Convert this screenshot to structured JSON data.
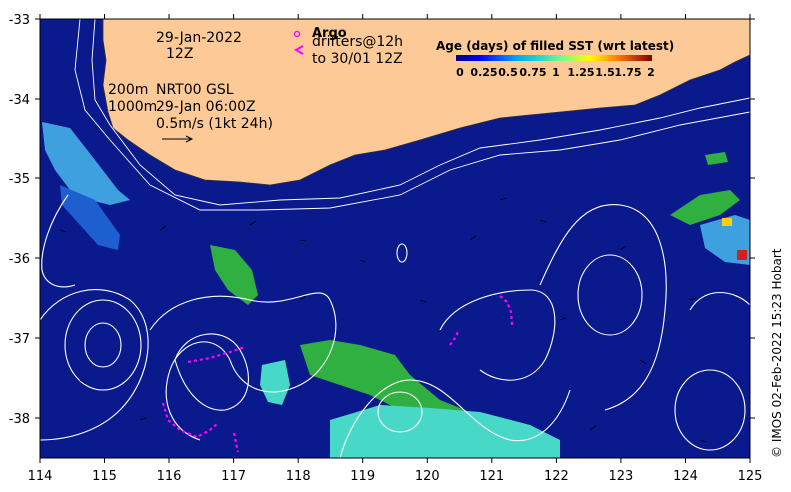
{
  "map": {
    "date_line1": "29-Jan-2022",
    "date_line2": "12Z",
    "argo_label": "Argo",
    "drifters_line1": "drifters@12h",
    "drifters_line2": "to 30/01 12Z",
    "isobath_200": "200m",
    "isobath_1000": "1000m",
    "product": "NRT00 GSL",
    "product_time": "29-Jan 06:00Z",
    "scale_label": "0.5m/s (1kt 24h)",
    "credit": "© IMOS 02-Feb-2022 15:23 Hobart",
    "x_ticks": [
      "114",
      "115",
      "116",
      "117",
      "118",
      "119",
      "120",
      "121",
      "122",
      "123",
      "124",
      "125"
    ],
    "y_ticks": [
      "-33",
      "-34",
      "-35",
      "-36",
      "-37",
      "-38"
    ]
  },
  "legend": {
    "title": "Age (days) of filled SST (wrt latest)",
    "ticks": [
      "0",
      "0.25",
      "0.5",
      "0.75",
      "1",
      "1.25",
      "1.5",
      "1.75",
      "2"
    ]
  },
  "colors": {
    "ocean": "#0a1a8c",
    "land": "#fdca97",
    "light_blue": "#3fa0e0",
    "cyan": "#48d8c8",
    "green": "#30b040",
    "magenta": "#ff00ff"
  }
}
